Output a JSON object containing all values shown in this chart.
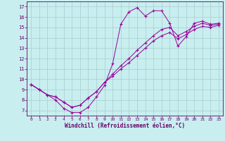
{
  "xlabel": "Windchill (Refroidissement éolien,°C)",
  "bg_color": "#c8eef0",
  "line_color": "#990099",
  "grid_color": "#aacccc",
  "axis_color": "#660066",
  "xlim": [
    -0.5,
    23.5
  ],
  "ylim": [
    6.5,
    17.5
  ],
  "xticks": [
    0,
    1,
    2,
    3,
    4,
    5,
    6,
    7,
    8,
    9,
    10,
    11,
    12,
    13,
    14,
    15,
    16,
    17,
    18,
    19,
    20,
    21,
    22,
    23
  ],
  "yticks": [
    7,
    8,
    9,
    10,
    11,
    12,
    13,
    14,
    15,
    16,
    17
  ],
  "series": [
    {
      "x": [
        0,
        1,
        2,
        3,
        4,
        5,
        6,
        7,
        8,
        9,
        10,
        11,
        12,
        13,
        14,
        15,
        16,
        17,
        18,
        19,
        20,
        21,
        22,
        23
      ],
      "y": [
        9.5,
        9.0,
        8.5,
        8.0,
        7.2,
        6.8,
        6.8,
        7.3,
        8.3,
        9.4,
        11.5,
        15.3,
        16.5,
        16.9,
        16.1,
        16.6,
        16.6,
        15.4,
        13.2,
        14.1,
        15.4,
        15.6,
        15.3,
        15.4
      ]
    },
    {
      "x": [
        0,
        1,
        2,
        3,
        4,
        5,
        6,
        7,
        8,
        9,
        10,
        11,
        12,
        13,
        14,
        15,
        16,
        17,
        18,
        19,
        20,
        21,
        22,
        23
      ],
      "y": [
        9.5,
        9.0,
        8.5,
        8.3,
        7.8,
        7.3,
        7.5,
        8.2,
        8.8,
        9.7,
        10.5,
        11.3,
        12.0,
        12.8,
        13.5,
        14.2,
        14.8,
        15.0,
        14.2,
        14.6,
        15.1,
        15.4,
        15.2,
        15.3
      ]
    },
    {
      "x": [
        0,
        1,
        2,
        3,
        4,
        5,
        6,
        7,
        8,
        9,
        10,
        11,
        12,
        13,
        14,
        15,
        16,
        17,
        18,
        19,
        20,
        21,
        22,
        23
      ],
      "y": [
        9.5,
        9.0,
        8.5,
        8.3,
        7.8,
        7.3,
        7.5,
        8.2,
        8.8,
        9.7,
        10.3,
        11.0,
        11.6,
        12.3,
        13.0,
        13.7,
        14.2,
        14.5,
        13.9,
        14.3,
        14.8,
        15.1,
        15.0,
        15.2
      ]
    }
  ]
}
